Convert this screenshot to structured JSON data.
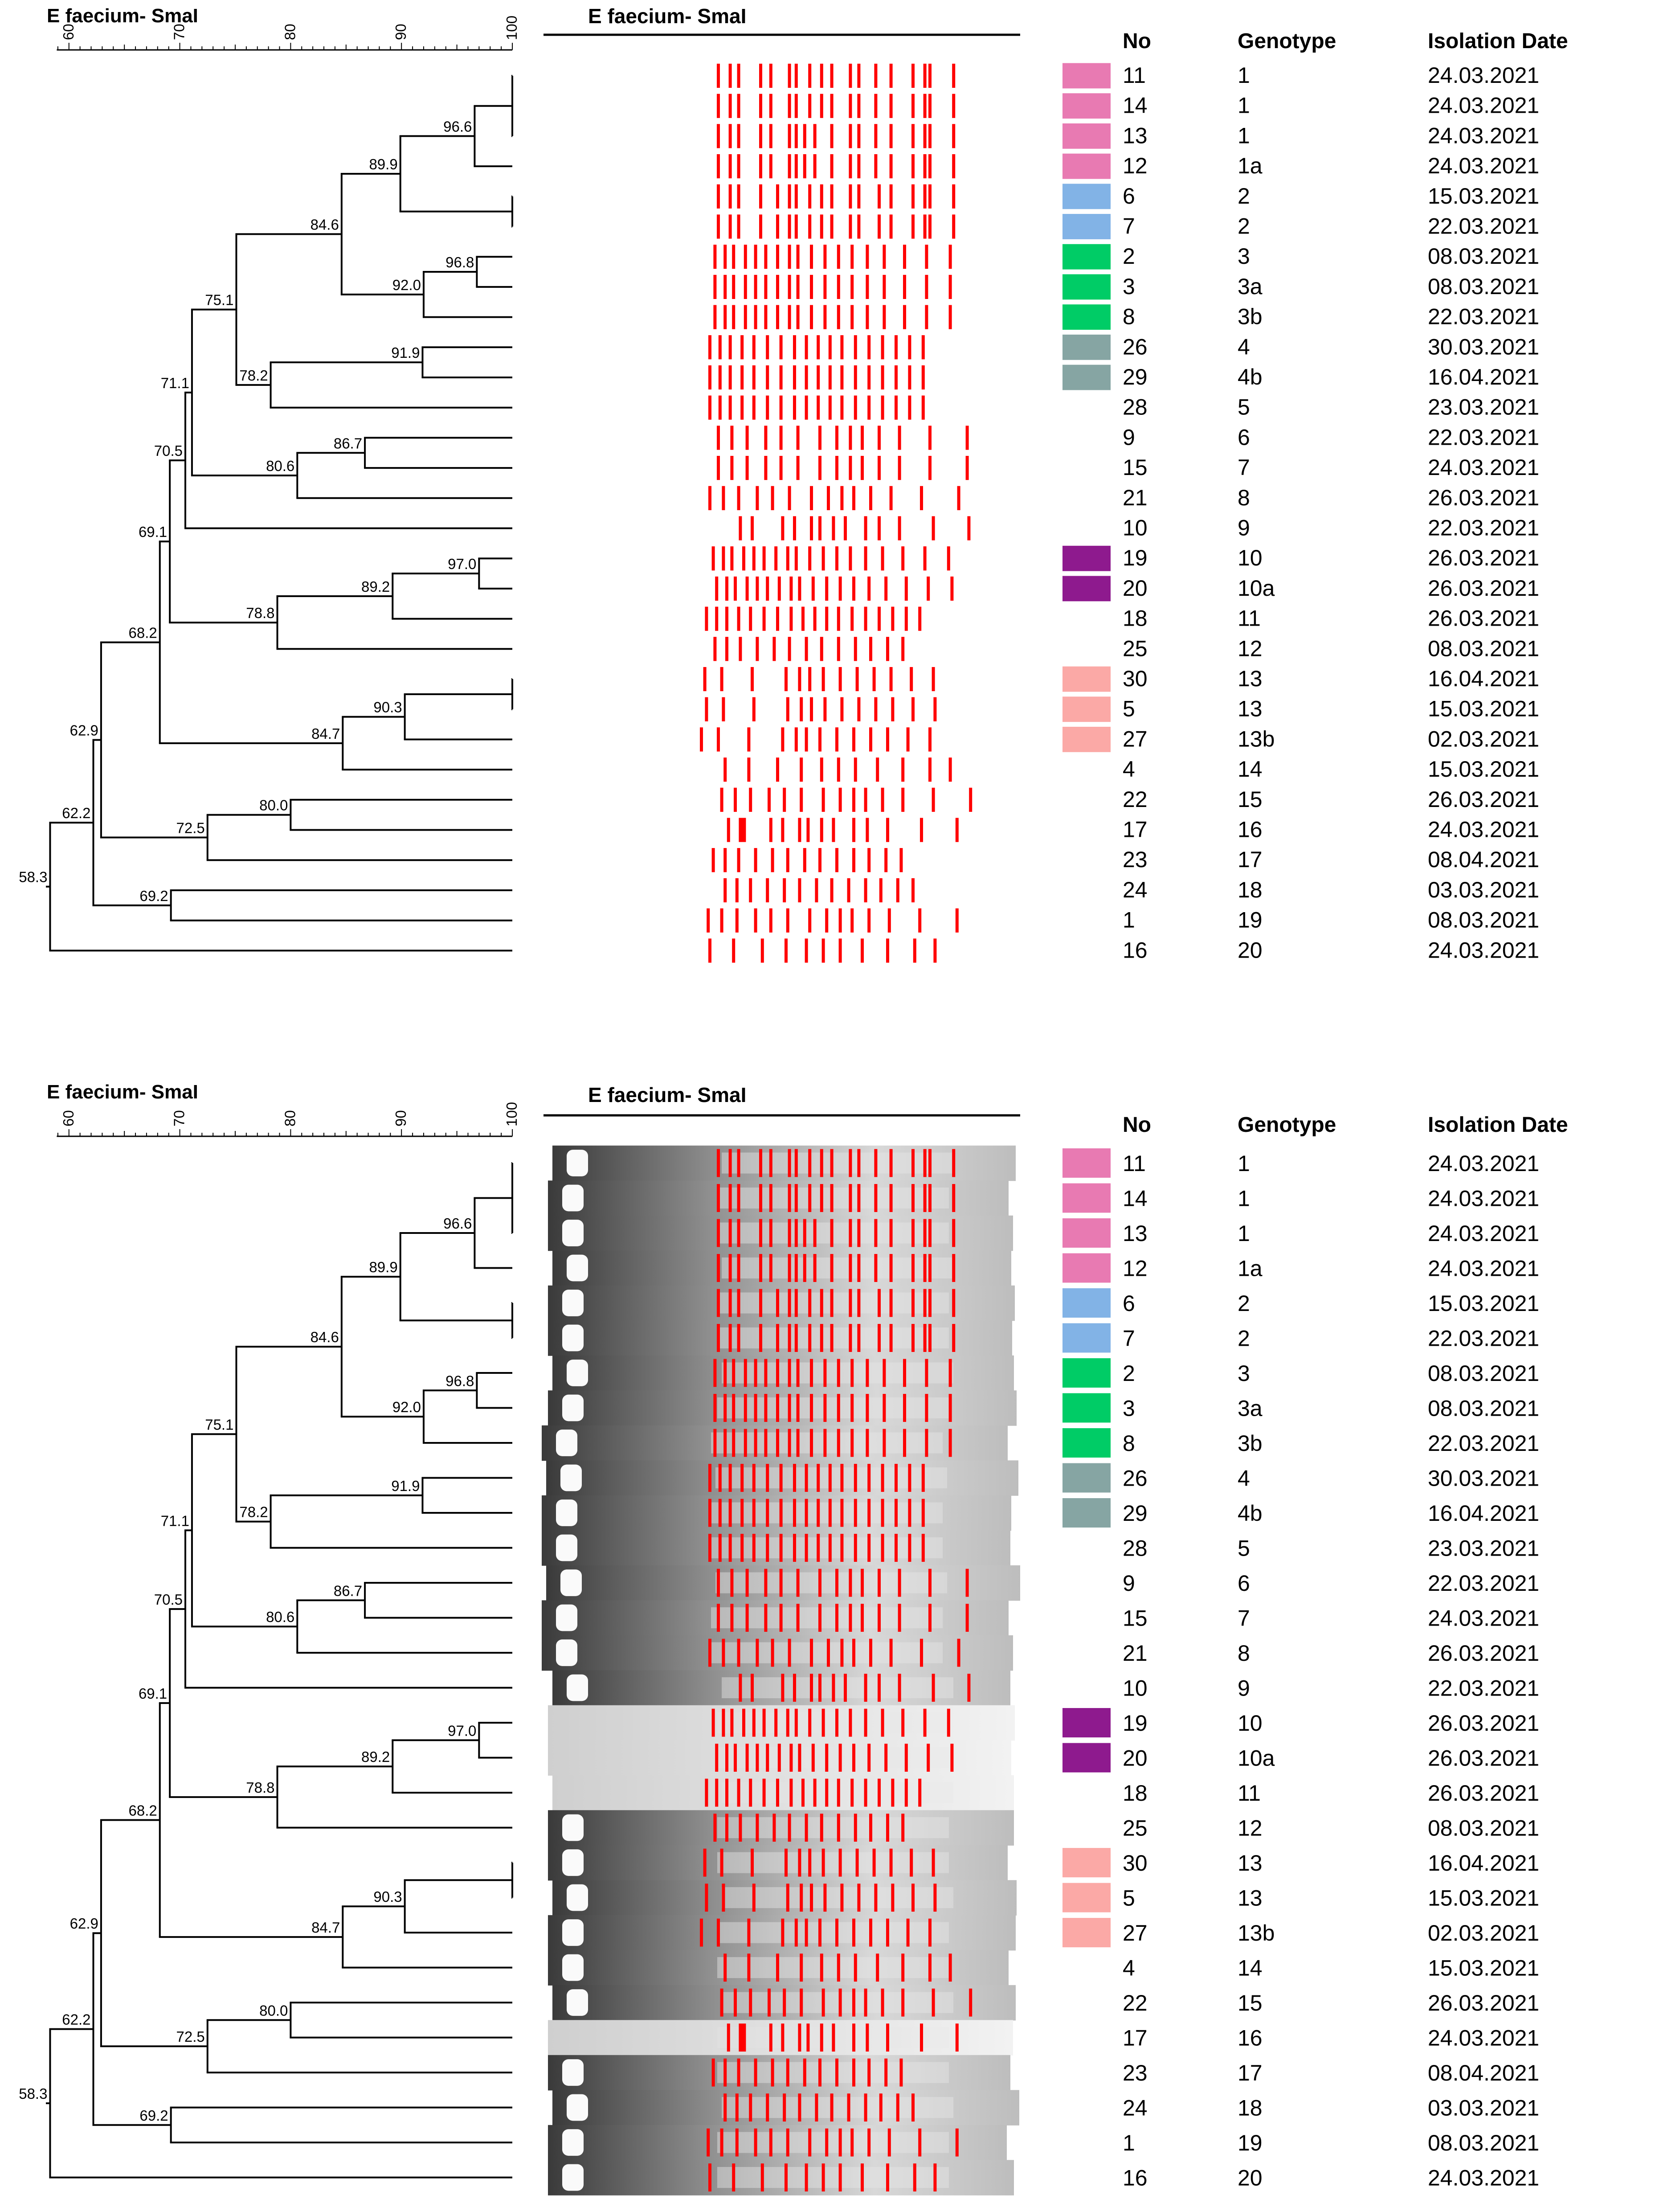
{
  "panels": [
    {
      "id": "top",
      "dendro_title": "E faecium- SmaI",
      "gel_title": "E faecium- SmaI",
      "gel_photo": false
    },
    {
      "id": "bottom",
      "dendro_title": "E faecium- SmaI",
      "gel_title": "E faecium- SmaI",
      "gel_photo": true
    }
  ],
  "axis": {
    "ticks": [
      "60",
      "70",
      "80",
      "90",
      "100"
    ]
  },
  "table_headers": {
    "no": "No",
    "genotype": "Genotype",
    "date": "Isolation Date"
  },
  "colors": {
    "pink": "#e87ab2",
    "blue": "#82b3e6",
    "green": "#00cc66",
    "teal": "#86a5a3",
    "purple": "#8e1a8e",
    "salmon": "#fba9a6",
    "band": "#ff0000"
  },
  "isolates": [
    {
      "no": "11",
      "genotype": "1",
      "date": "24.03.2021",
      "color": "pink"
    },
    {
      "no": "14",
      "genotype": "1",
      "date": "24.03.2021",
      "color": "pink"
    },
    {
      "no": "13",
      "genotype": "1",
      "date": "24.03.2021",
      "color": "pink"
    },
    {
      "no": "12",
      "genotype": "1a",
      "date": "24.03.2021",
      "color": "pink"
    },
    {
      "no": "6",
      "genotype": "2",
      "date": "15.03.2021",
      "color": "blue"
    },
    {
      "no": "7",
      "genotype": "2",
      "date": "22.03.2021",
      "color": "blue"
    },
    {
      "no": "2",
      "genotype": "3",
      "date": "08.03.2021",
      "color": "green"
    },
    {
      "no": "3",
      "genotype": "3a",
      "date": "08.03.2021",
      "color": "green"
    },
    {
      "no": "8",
      "genotype": "3b",
      "date": "22.03.2021",
      "color": "green"
    },
    {
      "no": "26",
      "genotype": "4",
      "date": "30.03.2021",
      "color": "teal"
    },
    {
      "no": "29",
      "genotype": "4b",
      "date": "16.04.2021",
      "color": "teal"
    },
    {
      "no": "28",
      "genotype": "5",
      "date": "23.03.2021",
      "color": null
    },
    {
      "no": "9",
      "genotype": "6",
      "date": "22.03.2021",
      "color": null
    },
    {
      "no": "15",
      "genotype": "7",
      "date": "24.03.2021",
      "color": null
    },
    {
      "no": "21",
      "genotype": "8",
      "date": "26.03.2021",
      "color": null
    },
    {
      "no": "10",
      "genotype": "9",
      "date": "22.03.2021",
      "color": null
    },
    {
      "no": "19",
      "genotype": "10",
      "date": "26.03.2021",
      "color": "purple"
    },
    {
      "no": "20",
      "genotype": "10a",
      "date": "26.03.2021",
      "color": "purple"
    },
    {
      "no": "18",
      "genotype": "11",
      "date": "26.03.2021",
      "color": null
    },
    {
      "no": "25",
      "genotype": "12",
      "date": "08.03.2021",
      "color": null
    },
    {
      "no": "30",
      "genotype": "13",
      "date": "16.04.2021",
      "color": "salmon"
    },
    {
      "no": "5",
      "genotype": "13",
      "date": "15.03.2021",
      "color": "salmon"
    },
    {
      "no": "27",
      "genotype": "13b",
      "date": "02.03.2021",
      "color": "salmon"
    },
    {
      "no": "4",
      "genotype": "14",
      "date": "15.03.2021",
      "color": null
    },
    {
      "no": "22",
      "genotype": "15",
      "date": "26.03.2021",
      "color": null
    },
    {
      "no": "17",
      "genotype": "16",
      "date": "24.03.2021",
      "color": null
    },
    {
      "no": "23",
      "genotype": "17",
      "date": "08.04.2021",
      "color": null
    },
    {
      "no": "24",
      "genotype": "18",
      "date": "03.03.2021",
      "color": null
    },
    {
      "no": "1",
      "genotype": "19",
      "date": "08.03.2021",
      "color": null
    },
    {
      "no": "16",
      "genotype": "20",
      "date": "24.03.2021",
      "color": null
    }
  ],
  "tree": {
    "root": {
      "sim": 58.3,
      "label": "58.3",
      "children": [
        {
          "sim": 62.2,
          "label": "62.2",
          "children": [
            {
              "sim": 62.9,
              "label": "62.9",
              "children": [
                {
                  "sim": 68.2,
                  "label": "68.2",
                  "children": [
                    {
                      "sim": 69.1,
                      "label": "69.1",
                      "children": [
                        {
                          "sim": 70.5,
                          "label": "70.5",
                          "children": [
                            {
                              "sim": 71.1,
                              "label": "71.1",
                              "children": [
                                {
                                  "sim": 75.1,
                                  "label": "75.1",
                                  "children": [
                                    {
                                      "sim": 84.6,
                                      "label": "84.6",
                                      "children": [
                                        {
                                          "sim": 89.9,
                                          "label": "89.9",
                                          "children": [
                                            {
                                              "sim": 96.6,
                                              "label": "96.6",
                                              "children": [
                                                {
                                                  "sim": 100,
                                                  "label": "",
                                                  "children": [
                                                    {
                                                      "leaf": 0
                                                    },
                                                    {
                                                      "leaf": 1
                                                    },
                                                    {
                                                      "leaf": 2
                                                    }
                                                  ]
                                                },
                                                {
                                                  "leaf": 3
                                                }
                                              ]
                                            },
                                            {
                                              "sim": 100,
                                              "label": "",
                                              "children": [
                                                {
                                                  "leaf": 4
                                                },
                                                {
                                                  "leaf": 5
                                                }
                                              ]
                                            }
                                          ]
                                        },
                                        {
                                          "sim": 92.0,
                                          "label": "92.0",
                                          "children": [
                                            {
                                              "sim": 96.8,
                                              "label": "96.8",
                                              "children": [
                                                {
                                                  "leaf": 6
                                                },
                                                {
                                                  "leaf": 7
                                                }
                                              ]
                                            },
                                            {
                                              "leaf": 8
                                            }
                                          ]
                                        }
                                      ]
                                    },
                                    {
                                      "sim": 78.2,
                                      "label": "78.2",
                                      "children": [
                                        {
                                          "sim": 91.9,
                                          "label": "91.9",
                                          "children": [
                                            {
                                              "leaf": 9
                                            },
                                            {
                                              "leaf": 10
                                            }
                                          ]
                                        },
                                        {
                                          "leaf": 11
                                        }
                                      ]
                                    }
                                  ]
                                },
                                {
                                  "sim": 80.6,
                                  "label": "80.6",
                                  "children": [
                                    {
                                      "sim": 86.7,
                                      "label": "86.7",
                                      "children": [
                                        {
                                          "leaf": 12
                                        },
                                        {
                                          "leaf": 13
                                        }
                                      ]
                                    },
                                    {
                                      "leaf": 14
                                    }
                                  ]
                                }
                              ]
                            },
                            {
                              "leaf": 15
                            }
                          ]
                        },
                        {
                          "sim": 78.8,
                          "label": "78.8",
                          "children": [
                            {
                              "sim": 89.2,
                              "label": "89.2",
                              "children": [
                                {
                                  "sim": 97.0,
                                  "label": "97.0",
                                  "children": [
                                    {
                                      "leaf": 16
                                    },
                                    {
                                      "leaf": 17
                                    }
                                  ]
                                },
                                {
                                  "leaf": 18
                                }
                              ]
                            },
                            {
                              "leaf": 19
                            }
                          ]
                        }
                      ]
                    },
                    {
                      "sim": 84.7,
                      "label": "84.7",
                      "children": [
                        {
                          "sim": 90.3,
                          "label": "90.3",
                          "children": [
                            {
                              "sim": 100,
                              "label": "",
                              "children": [
                                {
                                  "leaf": 20
                                },
                                {
                                  "leaf": 21
                                }
                              ]
                            },
                            {
                              "leaf": 22
                            }
                          ]
                        },
                        {
                          "leaf": 23
                        }
                      ]
                    }
                  ]
                },
                {
                  "sim": 72.5,
                  "label": "72.5",
                  "children": [
                    {
                      "sim": 80.0,
                      "label": "80.0",
                      "children": [
                        {
                          "leaf": 24
                        },
                        {
                          "leaf": 25
                        }
                      ]
                    },
                    {
                      "leaf": 26
                    }
                  ]
                }
              ]
            },
            {
              "sim": 69.2,
              "label": "69.2",
              "children": [
                {
                  "leaf": 27
                },
                {
                  "leaf": 28
                }
              ]
            }
          ]
        },
        {
          "leaf": 29
        }
      ]
    }
  },
  "bands": {
    "A": [
      0.05,
      0.12,
      0.17,
      0.3,
      0.36,
      0.47,
      0.51,
      0.59,
      0.66,
      0.72,
      0.83,
      0.88,
      0.98,
      1.07,
      1.2,
      1.27,
      1.3,
      1.44
    ],
    "A2": [
      0.05,
      0.12,
      0.17,
      0.3,
      0.36,
      0.47,
      0.51,
      0.56,
      0.62,
      0.72,
      0.83,
      0.88,
      0.98,
      1.07,
      1.2,
      1.27,
      1.3,
      1.44
    ],
    "B": [
      0.05,
      0.12,
      0.17,
      0.3,
      0.4,
      0.47,
      0.51,
      0.59,
      0.66,
      0.72,
      0.83,
      0.88,
      1.0,
      1.07,
      1.2,
      1.27,
      1.3,
      1.44
    ],
    "C": [
      0.03,
      0.09,
      0.14,
      0.21,
      0.27,
      0.33,
      0.4,
      0.47,
      0.52,
      0.6,
      0.68,
      0.76,
      0.84,
      0.93,
      1.03,
      1.15,
      1.28,
      1.42
    ],
    "D": [
      0.0,
      0.06,
      0.12,
      0.19,
      0.26,
      0.34,
      0.42,
      0.5,
      0.57,
      0.64,
      0.71,
      0.78,
      0.86,
      0.94,
      1.02,
      1.1,
      1.18,
      1.26
    ],
    "E": [
      0.05,
      0.13,
      0.22,
      0.33,
      0.42,
      0.52,
      0.65,
      0.75,
      0.83,
      0.9,
      1.0,
      1.12,
      1.3,
      1.52
    ],
    "F": [
      0.08,
      0.15,
      0.33,
      0.4,
      0.5,
      0.55,
      0.63,
      0.7,
      0.82,
      0.9,
      1.02,
      1.22,
      1.43
    ],
    "G": [
      0.03,
      0.1,
      0.18,
      0.28,
      0.38,
      0.47,
      0.57,
      0.66,
      0.76,
      0.86,
      0.95,
      1.05,
      1.14
    ],
    "H": [
      0.0,
      0.1,
      0.28,
      0.48,
      0.56,
      0.62,
      0.7,
      0.8,
      0.9,
      1.0,
      1.1,
      1.22,
      1.35
    ],
    "I": [
      0.05,
      0.19,
      0.36,
      0.5,
      0.62,
      0.72,
      0.82,
      0.95,
      1.1,
      1.26,
      1.38
    ]
  },
  "band_rows": [
    "A",
    "A",
    "A2",
    "A2",
    "B",
    "B",
    "C",
    "C",
    "C",
    "D",
    "D",
    "D",
    "E",
    "E",
    "E",
    "F",
    "C",
    "C",
    "D",
    "G",
    "H",
    "H",
    "H",
    "I",
    "E",
    "F",
    "G",
    "G",
    "E",
    "I"
  ],
  "band_offsets": [
    0,
    0,
    0,
    0,
    0,
    0,
    0,
    0,
    0,
    0,
    0,
    0,
    0,
    0,
    -0.05,
    0.1,
    -0.01,
    0.01,
    -0.02,
    0.0,
    -0.03,
    -0.02,
    -0.05,
    0.04,
    0.02,
    0.03,
    -0.01,
    0.06,
    -0.06,
    -0.05
  ]
}
